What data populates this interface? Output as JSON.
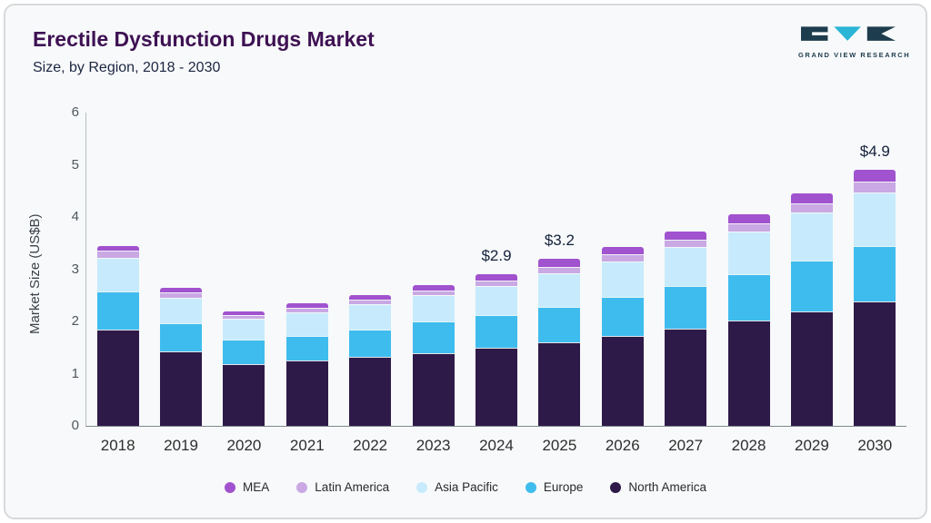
{
  "header": {
    "title": "Erectile Dysfunction Drugs Market",
    "subtitle": "Size, by Region, 2018 - 2030",
    "logo_text": "GRAND VIEW RESEARCH",
    "logo_colors": {
      "dark": "#1d3c4d",
      "cyan": "#2ab5d6"
    }
  },
  "chart_data": {
    "type": "bar",
    "stacked": true,
    "title": "Erectile Dysfunction Drugs Market Size, by Region, 2018 - 2030",
    "xlabel": "",
    "ylabel": "Market Size (US$B)",
    "ylim": [
      0,
      6
    ],
    "yticks": [
      0,
      1,
      2,
      3,
      4,
      5,
      6
    ],
    "grid": false,
    "legend_position": "bottom",
    "categories": [
      "2018",
      "2019",
      "2020",
      "2021",
      "2022",
      "2023",
      "2024",
      "2025",
      "2026",
      "2027",
      "2028",
      "2029",
      "2030"
    ],
    "series": [
      {
        "name": "North America",
        "color": "#2e1a49",
        "values": [
          1.85,
          1.42,
          1.18,
          1.25,
          1.32,
          1.4,
          1.5,
          1.6,
          1.73,
          1.86,
          2.02,
          2.2,
          2.38
        ]
      },
      {
        "name": "Europe",
        "color": "#3fbcee",
        "values": [
          0.72,
          0.55,
          0.47,
          0.47,
          0.53,
          0.6,
          0.62,
          0.68,
          0.74,
          0.82,
          0.88,
          0.97,
          1.07
        ]
      },
      {
        "name": "Asia Pacific",
        "color": "#c7ebfc",
        "values": [
          0.65,
          0.48,
          0.4,
          0.46,
          0.48,
          0.5,
          0.56,
          0.65,
          0.68,
          0.74,
          0.82,
          0.91,
          1.02
        ]
      },
      {
        "name": "Latin America",
        "color": "#c9a8e4",
        "values": [
          0.13,
          0.1,
          0.07,
          0.08,
          0.09,
          0.1,
          0.11,
          0.12,
          0.13,
          0.15,
          0.16,
          0.19,
          0.21
        ]
      },
      {
        "name": "MEA",
        "color": "#a152ce",
        "values": [
          0.1,
          0.1,
          0.08,
          0.09,
          0.08,
          0.1,
          0.11,
          0.15,
          0.14,
          0.15,
          0.17,
          0.18,
          0.22
        ]
      }
    ],
    "legend_order": [
      "MEA",
      "Latin America",
      "Asia Pacific",
      "Europe",
      "North America"
    ],
    "annotations": [
      {
        "category": "2024",
        "label": "$2.9"
      },
      {
        "category": "2025",
        "label": "$3.2"
      },
      {
        "category": "2030",
        "label": "$4.9"
      }
    ]
  }
}
